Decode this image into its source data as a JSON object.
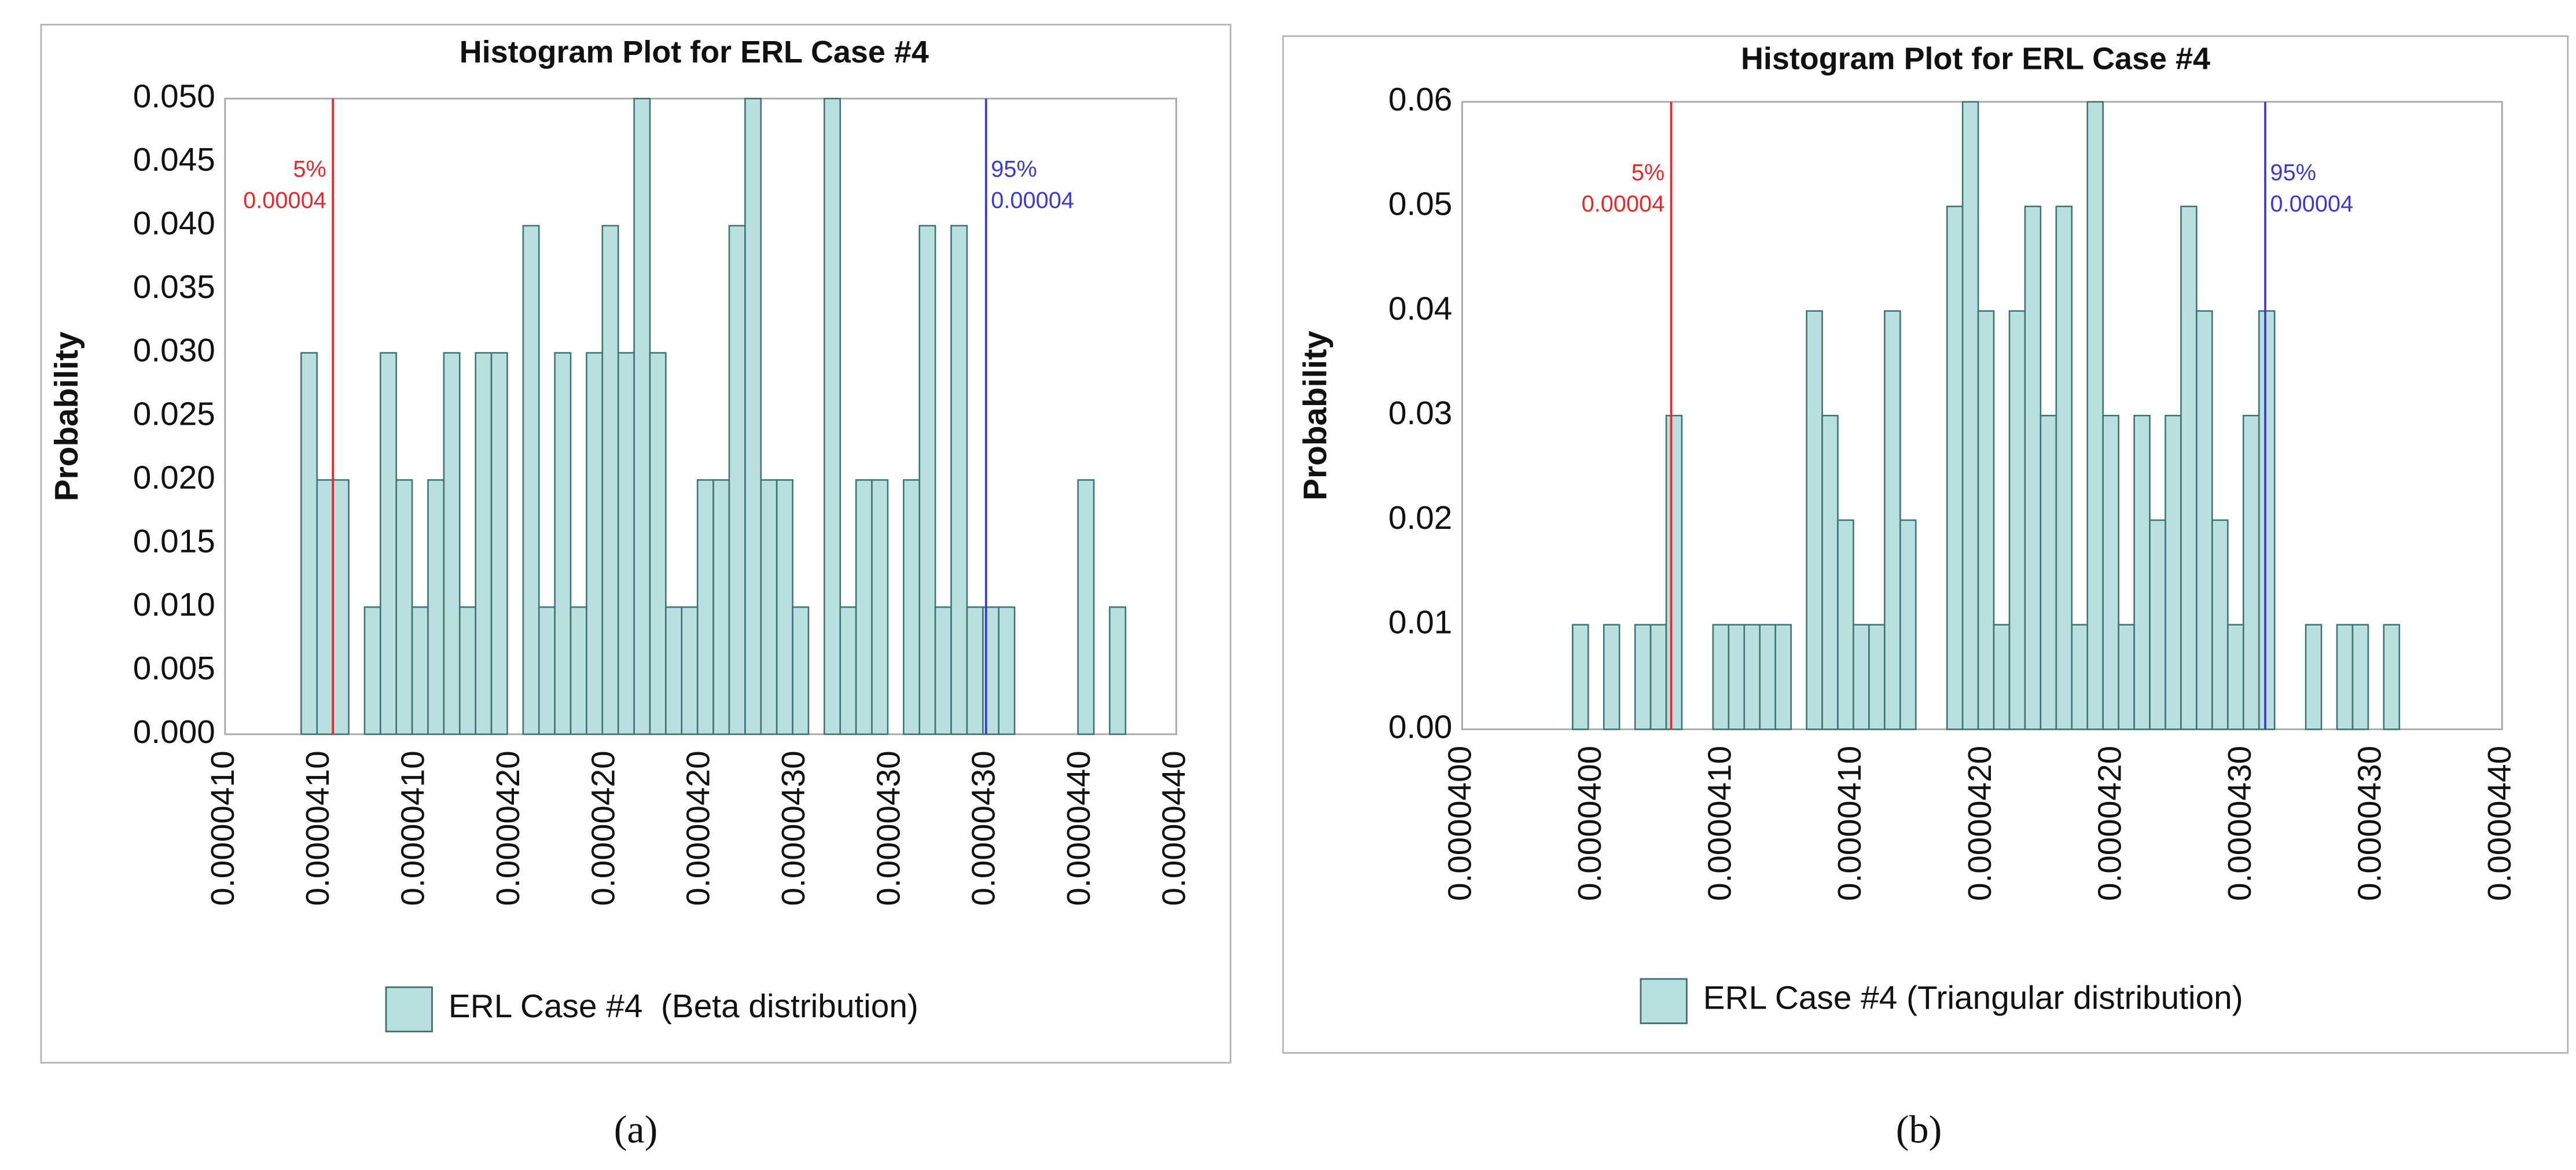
{
  "chart_data": [
    {
      "type": "histogram",
      "title": "Histogram Plot for ERL Case #4",
      "ylabel": "Probability",
      "caption": "(a)",
      "bins": [
        4.104e-05,
        4.109e-05,
        4.114e-05,
        4.119e-05,
        4.124e-05,
        4.129e-05,
        4.134e-05,
        4.139e-05,
        4.144e-05,
        4.149e-05,
        4.154e-05,
        4.159e-05,
        4.164e-05,
        4.169e-05,
        4.174e-05,
        4.179e-05,
        4.184e-05,
        4.189e-05,
        4.194e-05,
        4.199e-05,
        4.204e-05,
        4.209e-05,
        4.214e-05,
        4.219e-05,
        4.224e-05,
        4.229e-05,
        4.234e-05,
        4.239e-05,
        4.244e-05,
        4.249e-05,
        4.254e-05,
        4.259e-05,
        4.264e-05,
        4.269e-05,
        4.274e-05,
        4.279e-05,
        4.284e-05,
        4.289e-05,
        4.294e-05,
        4.299e-05,
        4.304e-05,
        4.309e-05,
        4.314e-05,
        4.319e-05,
        4.324e-05,
        4.329e-05,
        4.334e-05,
        4.339e-05,
        4.344e-05,
        4.349e-05,
        4.354e-05,
        4.359e-05,
        4.364e-05
      ],
      "series": [
        {
          "name": "ERL Case #4  (Beta distribution)",
          "color": "#b9dfdf",
          "edge_color": "#3d7373",
          "values": [
            0.03,
            0.02,
            0.02,
            0,
            0.01,
            0.03,
            0.02,
            0.01,
            0.02,
            0.03,
            0.01,
            0.03,
            0.03,
            0,
            0.04,
            0.01,
            0.03,
            0.01,
            0.03,
            0.04,
            0.03,
            0.05,
            0.03,
            0.01,
            0.01,
            0.02,
            0.02,
            0.04,
            0.05,
            0.02,
            0.02,
            0.01,
            0,
            0.05,
            0.01,
            0.02,
            0.02,
            0,
            0.02,
            0.04,
            0.01,
            0.04,
            0.01,
            0.01,
            0.01,
            0,
            0,
            0,
            0,
            0.02,
            0,
            0.01
          ]
        }
      ],
      "xlim": [
        4.08e-05,
        4.38e-05
      ],
      "xticks": [
        {
          "value": 4.08e-05,
          "label": "0.0000410"
        },
        {
          "value": 4.11e-05,
          "label": "0.0000410"
        },
        {
          "value": 4.14e-05,
          "label": "0.0000410"
        },
        {
          "value": 4.17e-05,
          "label": "0.0000420"
        },
        {
          "value": 4.2e-05,
          "label": "0.0000420"
        },
        {
          "value": 4.23e-05,
          "label": "0.0000420"
        },
        {
          "value": 4.26e-05,
          "label": "0.0000430"
        },
        {
          "value": 4.29e-05,
          "label": "0.0000430"
        },
        {
          "value": 4.32e-05,
          "label": "0.0000430"
        },
        {
          "value": 4.35e-05,
          "label": "0.0000440"
        },
        {
          "value": 4.38e-05,
          "label": "0.0000440"
        }
      ],
      "ylim": [
        0,
        0.05
      ],
      "yticks": [
        {
          "value": 0,
          "label": "0.000"
        },
        0.005,
        {
          "value": 0.01,
          "label": "0.010"
        },
        0.015,
        {
          "value": 0.02,
          "label": "0.020"
        },
        0.025,
        {
          "value": 0.03,
          "label": "0.030"
        },
        0.035,
        {
          "value": 0.04,
          "label": "0.040"
        },
        0.045,
        {
          "value": 0.05,
          "label": "0.050"
        }
      ],
      "markers": [
        {
          "name": "5%",
          "value": 4.114e-05,
          "value_label": "0.00004",
          "color": "#e8282b"
        },
        {
          "name": "95%",
          "value": 4.32e-05,
          "value_label": "0.00004",
          "color": "#3a3ad0"
        }
      ],
      "grid": false,
      "legend": "bottom"
    },
    {
      "type": "histogram",
      "title": "Histogram Plot for ERL Case #4",
      "ylabel": "Probability",
      "caption": "(b)",
      "bins": [
        4.0225e-05,
        4.0285e-05,
        4.0345e-05,
        4.0405e-05,
        4.0465e-05,
        4.0525e-05,
        4.0585e-05,
        4.0645e-05,
        4.0705e-05,
        4.0765e-05,
        4.0825e-05,
        4.0885e-05,
        4.0945e-05,
        4.1005e-05,
        4.1065e-05,
        4.1125e-05,
        4.1185e-05,
        4.1245e-05,
        4.1305e-05,
        4.1365e-05,
        4.1425e-05,
        4.1485e-05,
        4.1545e-05,
        4.1605e-05,
        4.1665e-05,
        4.1725e-05,
        4.1785e-05,
        4.1845e-05,
        4.1905e-05,
        4.1965e-05,
        4.2025e-05,
        4.2085e-05,
        4.2145e-05,
        4.2205e-05,
        4.2265e-05,
        4.2325e-05,
        4.2385e-05,
        4.2445e-05,
        4.2505e-05,
        4.2565e-05,
        4.2625e-05,
        4.2685e-05,
        4.2745e-05,
        4.2805e-05,
        4.2865e-05,
        4.2925e-05,
        4.2985e-05,
        4.3045e-05,
        4.3105e-05,
        4.3165e-05,
        4.3225e-05,
        4.3285e-05,
        4.3345e-05,
        4.3405e-05
      ],
      "series": [
        {
          "name": "ERL Case #4 (Triangular distribution)",
          "color": "#b9dfdf",
          "edge_color": "#3d7373",
          "values": [
            0.01,
            0,
            0.01,
            0,
            0.01,
            0.01,
            0.03,
            0,
            0,
            0.01,
            0.01,
            0.01,
            0.01,
            0.01,
            0,
            0.04,
            0.03,
            0.02,
            0.01,
            0.01,
            0.04,
            0.02,
            0,
            0,
            0.05,
            0.06,
            0.04,
            0.01,
            0.04,
            0.05,
            0.03,
            0.05,
            0.01,
            0.06,
            0.03,
            0.01,
            0.03,
            0.02,
            0.03,
            0.05,
            0.04,
            0.02,
            0.01,
            0.03,
            0.04,
            0,
            0,
            0.01,
            0,
            0.01,
            0.01,
            0,
            0.01
          ]
        }
      ],
      "xlim": [
        3.98e-05,
        4.38e-05
      ],
      "xticks": [
        {
          "value": 3.98e-05,
          "label": "0.0000400"
        },
        {
          "value": 4.03e-05,
          "label": "0.0000400"
        },
        {
          "value": 4.08e-05,
          "label": "0.0000410"
        },
        {
          "value": 4.13e-05,
          "label": "0.0000410"
        },
        {
          "value": 4.18e-05,
          "label": "0.0000420"
        },
        {
          "value": 4.23e-05,
          "label": "0.0000420"
        },
        {
          "value": 4.28e-05,
          "label": "0.0000430"
        },
        {
          "value": 4.33e-05,
          "label": "0.0000430"
        },
        {
          "value": 4.38e-05,
          "label": "0.0000440"
        }
      ],
      "ylim": [
        0,
        0.06
      ],
      "yticks": [
        {
          "value": 0,
          "label": "0.00"
        },
        0.01,
        0.02,
        0.03,
        0.04,
        0.05,
        0.06
      ],
      "markers": [
        {
          "name": "5%",
          "value": 4.0604e-05,
          "value_label": "0.00004",
          "color": "#e8282b"
        },
        {
          "name": "95%",
          "value": 4.2889e-05,
          "value_label": "0.00004",
          "color": "#3a3ad0"
        }
      ],
      "grid": false,
      "legend": "bottom"
    }
  ]
}
